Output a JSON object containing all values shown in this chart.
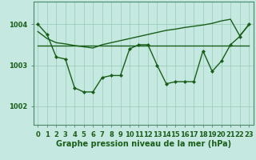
{
  "title": "",
  "xlabel": "Graphe pression niveau de la mer (hPa)",
  "bg_color": "#c5e8e0",
  "plot_bg_color": "#c5e8e0",
  "line_color": "#1a5e1a",
  "grid_color": "#9ecfbb",
  "ylim": [
    1001.55,
    1004.55
  ],
  "xlim": [
    -0.5,
    23.5
  ],
  "yticks": [
    1002,
    1003,
    1004
  ],
  "xticks": [
    0,
    1,
    2,
    3,
    4,
    5,
    6,
    7,
    8,
    9,
    10,
    11,
    12,
    13,
    14,
    15,
    16,
    17,
    18,
    19,
    20,
    21,
    22,
    23
  ],
  "series1_zigzag": [
    1004.0,
    1003.75,
    1003.2,
    1003.15,
    1002.45,
    1002.35,
    1002.35,
    1002.7,
    1002.75,
    1002.75,
    1003.4,
    1003.5,
    1003.5,
    1003.0,
    1002.55,
    1002.6,
    1002.6,
    1002.6,
    1003.35,
    1002.85,
    1003.1,
    1003.5,
    1003.7,
    1004.0
  ],
  "series2_flat": [
    1003.48,
    1003.48,
    1003.48,
    1003.48,
    1003.48,
    1003.48,
    1003.48,
    1003.48,
    1003.48,
    1003.48,
    1003.48,
    1003.48,
    1003.48,
    1003.48,
    1003.48,
    1003.48,
    1003.48,
    1003.48,
    1003.48,
    1003.48,
    1003.48,
    1003.48,
    1003.48,
    1003.48
  ],
  "series3_rising": [
    1003.82,
    1003.65,
    1003.55,
    1003.52,
    1003.48,
    1003.45,
    1003.42,
    1003.5,
    1003.55,
    1003.6,
    1003.65,
    1003.7,
    1003.75,
    1003.8,
    1003.85,
    1003.88,
    1003.92,
    1003.95,
    1003.98,
    1004.02,
    1004.08,
    1004.12,
    1003.72,
    1003.98
  ],
  "marker": "D",
  "markersize": 2.0,
  "linewidth": 1.0,
  "xlabel_fontsize": 7,
  "tick_fontsize": 6,
  "label_color": "#1a5e1a"
}
